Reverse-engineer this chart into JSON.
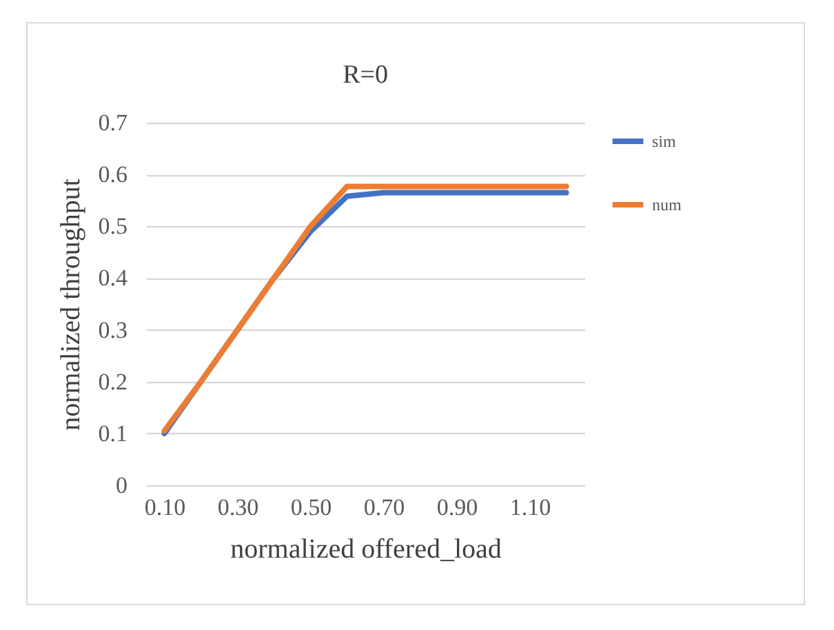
{
  "chart_data": {
    "type": "line",
    "title": "R=0",
    "xlabel": "normalized offered_load",
    "ylabel": "normalized throughput",
    "categories": [
      "0.10",
      null,
      "0.30",
      null,
      "0.50",
      null,
      "0.70",
      null,
      "0.90",
      null,
      "1.10",
      null
    ],
    "series": [
      {
        "name": "sim",
        "color": "#4472c4",
        "values": [
          0.1,
          0.2,
          0.3,
          0.4,
          0.49,
          0.558,
          0.565,
          0.565,
          0.565,
          0.565,
          0.565,
          0.565
        ]
      },
      {
        "name": "num",
        "color": "#ed7d31",
        "values": [
          0.105,
          0.2,
          0.3,
          0.4,
          0.5,
          0.577,
          0.577,
          0.577,
          0.577,
          0.577,
          0.577,
          0.577
        ]
      }
    ],
    "ylim": [
      0,
      0.7
    ],
    "yticks": [
      0,
      0.1,
      0.2,
      0.3,
      0.4,
      0.5,
      0.6,
      0.7
    ],
    "grid": "y",
    "legend": "right",
    "marker": "none",
    "line_style": "solid"
  }
}
